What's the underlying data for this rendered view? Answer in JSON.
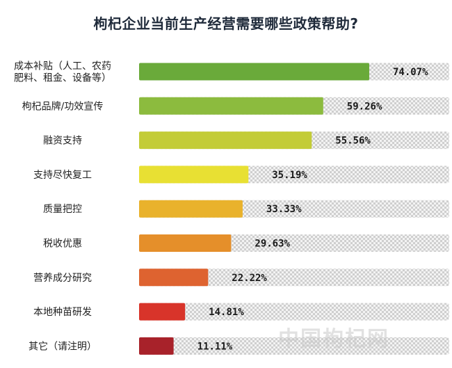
{
  "chart_data": {
    "type": "bar",
    "orientation": "horizontal",
    "title": "枸杞企业当前生产经营需要哪些政策帮助?",
    "categories": [
      [
        "成本补贴（人工、农药",
        "肥料、租金、设备等）"
      ],
      [
        "枸杞品牌/功效宣传"
      ],
      [
        "融资支持"
      ],
      [
        "支持尽快复工"
      ],
      [
        "质量把控"
      ],
      [
        "税收优惠"
      ],
      [
        "营养成分研究"
      ],
      [
        "本地种苗研发"
      ],
      [
        "其它（请注明）"
      ]
    ],
    "values": [
      74.07,
      59.26,
      55.56,
      35.19,
      33.33,
      29.63,
      22.22,
      14.81,
      11.11
    ],
    "value_labels": [
      "74.07%",
      "59.26%",
      "55.56%",
      "35.19%",
      "33.33%",
      "29.63%",
      "22.22%",
      "14.81%",
      "11.11%"
    ],
    "xlim": [
      0,
      100
    ],
    "bar_colors": [
      "#6aaa3a",
      "#8cbb3e",
      "#c3cc37",
      "#e8e033",
      "#e9b22c",
      "#e58f2a",
      "#de6330",
      "#d8342a",
      "#a8222a"
    ],
    "track_pattern": "checkered-light-gray",
    "grid": false,
    "legend": "none"
  },
  "watermark": "中国枸杞网"
}
